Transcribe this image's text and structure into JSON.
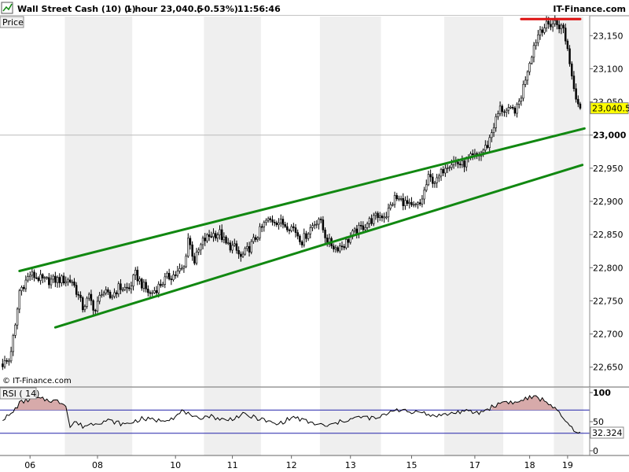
{
  "header": {
    "instrument": "Wall Street Cash (10) (-)",
    "timeframe": "1 hour",
    "last_price": "23,040.5",
    "change_pct": "(-0.53%)",
    "time": "11:56:46",
    "brand": "IT-Finance.com"
  },
  "panels": {
    "price_label": "Price",
    "rsi_label": "RSI ( 14)",
    "watermark": "© IT-Finance.com"
  },
  "colors": {
    "up_candle": "#ffffff",
    "down_candle": "#000000",
    "channel": "#118811",
    "resistance": "#dd1111",
    "price_tag": "#ffff00",
    "rsi_line": "#000000",
    "rsi_band": "#2222aa",
    "rsi_fill": "#d7aaaa",
    "stripe": "#efefef"
  },
  "chart_data": [
    {
      "type": "candlestick",
      "title": "Wall Street Cash (10) (-)",
      "ylim": [
        22620,
        23180
      ],
      "y_ticks": [
        22650,
        22700,
        22750,
        22800,
        22850,
        22900,
        22950,
        23000,
        23050,
        23100,
        23150
      ],
      "y_tick_labels": [
        "22,650",
        "22,700",
        "22,750",
        "22,800",
        "22,850",
        "22,900",
        "22,950",
        "23,000",
        "23,050",
        "23,100",
        "23,150"
      ],
      "x_ticks": [
        "06",
        "08",
        "10",
        "11",
        "12",
        "13",
        "15",
        "17",
        "18",
        "19"
      ],
      "last_value": 23040.5,
      "last_value_label": "23,040.5",
      "close_path": [
        [
          0,
          22655
        ],
        [
          3,
          22660
        ],
        [
          6,
          22710
        ],
        [
          8,
          22765
        ],
        [
          10,
          22775
        ],
        [
          13,
          22790
        ],
        [
          20,
          22780
        ],
        [
          27,
          22782
        ],
        [
          33,
          22780
        ],
        [
          35,
          22765
        ],
        [
          38,
          22740
        ],
        [
          41,
          22755
        ],
        [
          44,
          22735
        ],
        [
          47,
          22765
        ],
        [
          51,
          22755
        ],
        [
          55,
          22770
        ],
        [
          60,
          22768
        ],
        [
          63,
          22790
        ],
        [
          66,
          22775
        ],
        [
          70,
          22760
        ],
        [
          74,
          22772
        ],
        [
          78,
          22785
        ],
        [
          82,
          22790
        ],
        [
          86,
          22800
        ],
        [
          88,
          22845
        ],
        [
          91,
          22810
        ],
        [
          95,
          22840
        ],
        [
          99,
          22850
        ],
        [
          103,
          22852
        ],
        [
          106,
          22835
        ],
        [
          110,
          22830
        ],
        [
          113,
          22815
        ],
        [
          117,
          22830
        ],
        [
          121,
          22850
        ],
        [
          125,
          22870
        ],
        [
          129,
          22872
        ],
        [
          134,
          22865
        ],
        [
          138,
          22860
        ],
        [
          142,
          22840
        ],
        [
          146,
          22860
        ],
        [
          150,
          22875
        ],
        [
          154,
          22840
        ],
        [
          158,
          22830
        ],
        [
          162,
          22835
        ],
        [
          166,
          22850
        ],
        [
          170,
          22860
        ],
        [
          174,
          22870
        ],
        [
          178,
          22878
        ],
        [
          182,
          22880
        ],
        [
          186,
          22905
        ],
        [
          190,
          22900
        ],
        [
          194,
          22890
        ],
        [
          198,
          22895
        ],
        [
          202,
          22935
        ],
        [
          206,
          22930
        ],
        [
          210,
          22955
        ],
        [
          214,
          22960
        ],
        [
          218,
          22955
        ],
        [
          222,
          22965
        ],
        [
          226,
          22970
        ],
        [
          230,
          22985
        ],
        [
          233,
          23015
        ],
        [
          236,
          23040
        ],
        [
          240,
          23035
        ],
        [
          244,
          23040
        ],
        [
          246,
          23060
        ],
        [
          249,
          23100
        ],
        [
          252,
          23135
        ],
        [
          255,
          23160
        ],
        [
          258,
          23165
        ],
        [
          262,
          23170
        ],
        [
          266,
          23160
        ],
        [
          268,
          23130
        ],
        [
          270,
          23090
        ],
        [
          272,
          23060
        ],
        [
          274,
          23040
        ]
      ],
      "resistance_line": {
        "x": [
          246,
          274
        ],
        "y": [
          23175,
          23175
        ]
      },
      "channel_upper": {
        "x": [
          8,
          276
        ],
        "y": [
          22795,
          23010
        ]
      },
      "channel_lower": {
        "x": [
          25,
          275
        ],
        "y": [
          22710,
          22955
        ]
      }
    },
    {
      "type": "line",
      "title": "RSI ( 14)",
      "ylim": [
        0,
        100
      ],
      "y_ticks": [
        0,
        50,
        100
      ],
      "y_tick_labels": [
        "0",
        "50",
        "100"
      ],
      "bands": [
        30,
        70
      ],
      "last_value": 32.324,
      "last_value_label": "32.324",
      "x": [
        0,
        4,
        8,
        14,
        20,
        26,
        30,
        32,
        34,
        38,
        44,
        50,
        58,
        66,
        74,
        82,
        86,
        90,
        98,
        106,
        114,
        122,
        130,
        138,
        146,
        154,
        162,
        170,
        178,
        186,
        194,
        198,
        202,
        210,
        218,
        226,
        232,
        238,
        244,
        248,
        252,
        256,
        260,
        266,
        270,
        274
      ],
      "y": [
        55,
        62,
        82,
        90,
        88,
        85,
        80,
        40,
        50,
        42,
        48,
        52,
        45,
        55,
        52,
        58,
        70,
        55,
        60,
        52,
        62,
        55,
        45,
        58,
        48,
        42,
        52,
        58,
        55,
        72,
        65,
        70,
        60,
        62,
        68,
        65,
        75,
        85,
        82,
        90,
        92,
        88,
        80,
        55,
        38,
        32
      ]
    }
  ]
}
